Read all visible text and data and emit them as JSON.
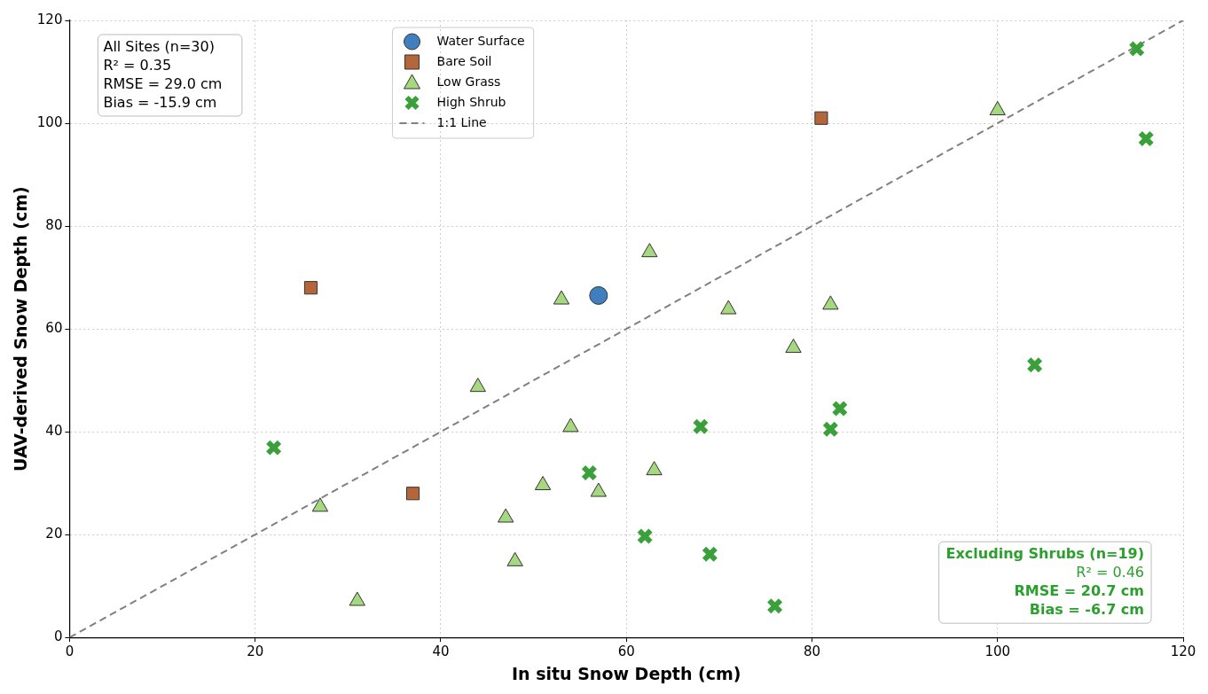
{
  "chart_data": {
    "type": "scatter",
    "xlabel": "In situ Snow Depth (cm)",
    "ylabel": "UAV-derived Snow Depth (cm)",
    "xlim": [
      0,
      120
    ],
    "xticks": [
      0,
      20,
      40,
      60,
      80,
      100,
      120
    ],
    "ylim": [
      0,
      120
    ],
    "yticks": [
      0,
      20,
      40,
      60,
      80,
      100,
      120
    ],
    "grid": true,
    "legend": "top",
    "series": [
      {
        "name": "Water Surface",
        "color": "#3f7fbf",
        "marker": "circle",
        "x": [
          57
        ],
        "values": [
          66.5
        ]
      },
      {
        "name": "Bare Soil",
        "color": "#b5653a",
        "marker": "square",
        "x": [
          26,
          37,
          81
        ],
        "values": [
          68,
          28,
          101
        ]
      },
      {
        "name": "Low Grass",
        "color": "#a6d97f",
        "marker": "triangle",
        "x": [
          27,
          31,
          44,
          47,
          48,
          51,
          53,
          54,
          57,
          62.5,
          63,
          71,
          78,
          82,
          100
        ],
        "values": [
          25.4,
          7.1,
          48.7,
          23.3,
          14.8,
          29.6,
          65.7,
          40.9,
          28.3,
          74.9,
          32.5,
          63.8,
          56.3,
          64.7,
          102.5
        ]
      },
      {
        "name": "High Shrub",
        "color": "#3aa03a",
        "marker": "cross",
        "x": [
          22,
          56,
          62,
          68,
          69,
          76,
          82,
          83,
          104,
          115,
          116
        ],
        "values": [
          36.9,
          32,
          19.7,
          41,
          16.2,
          6.1,
          40.5,
          44.5,
          53,
          114.5,
          97
        ]
      },
      {
        "name": "1:1 Line",
        "type": "line",
        "color": "#808080",
        "line_style": "dashed",
        "marker": "none",
        "x": [
          0,
          120
        ],
        "values": [
          0,
          120
        ]
      }
    ],
    "annotations": [
      "All Sites (n=30)\nR² = 0.35\nRMSE = 29.0 cm\nBias = -15.9 cm",
      "Excluding Shrubs (n=19)\nR² = 0.46\nRMSE = 20.7 cm\nBias = -6.7 cm"
    ]
  }
}
